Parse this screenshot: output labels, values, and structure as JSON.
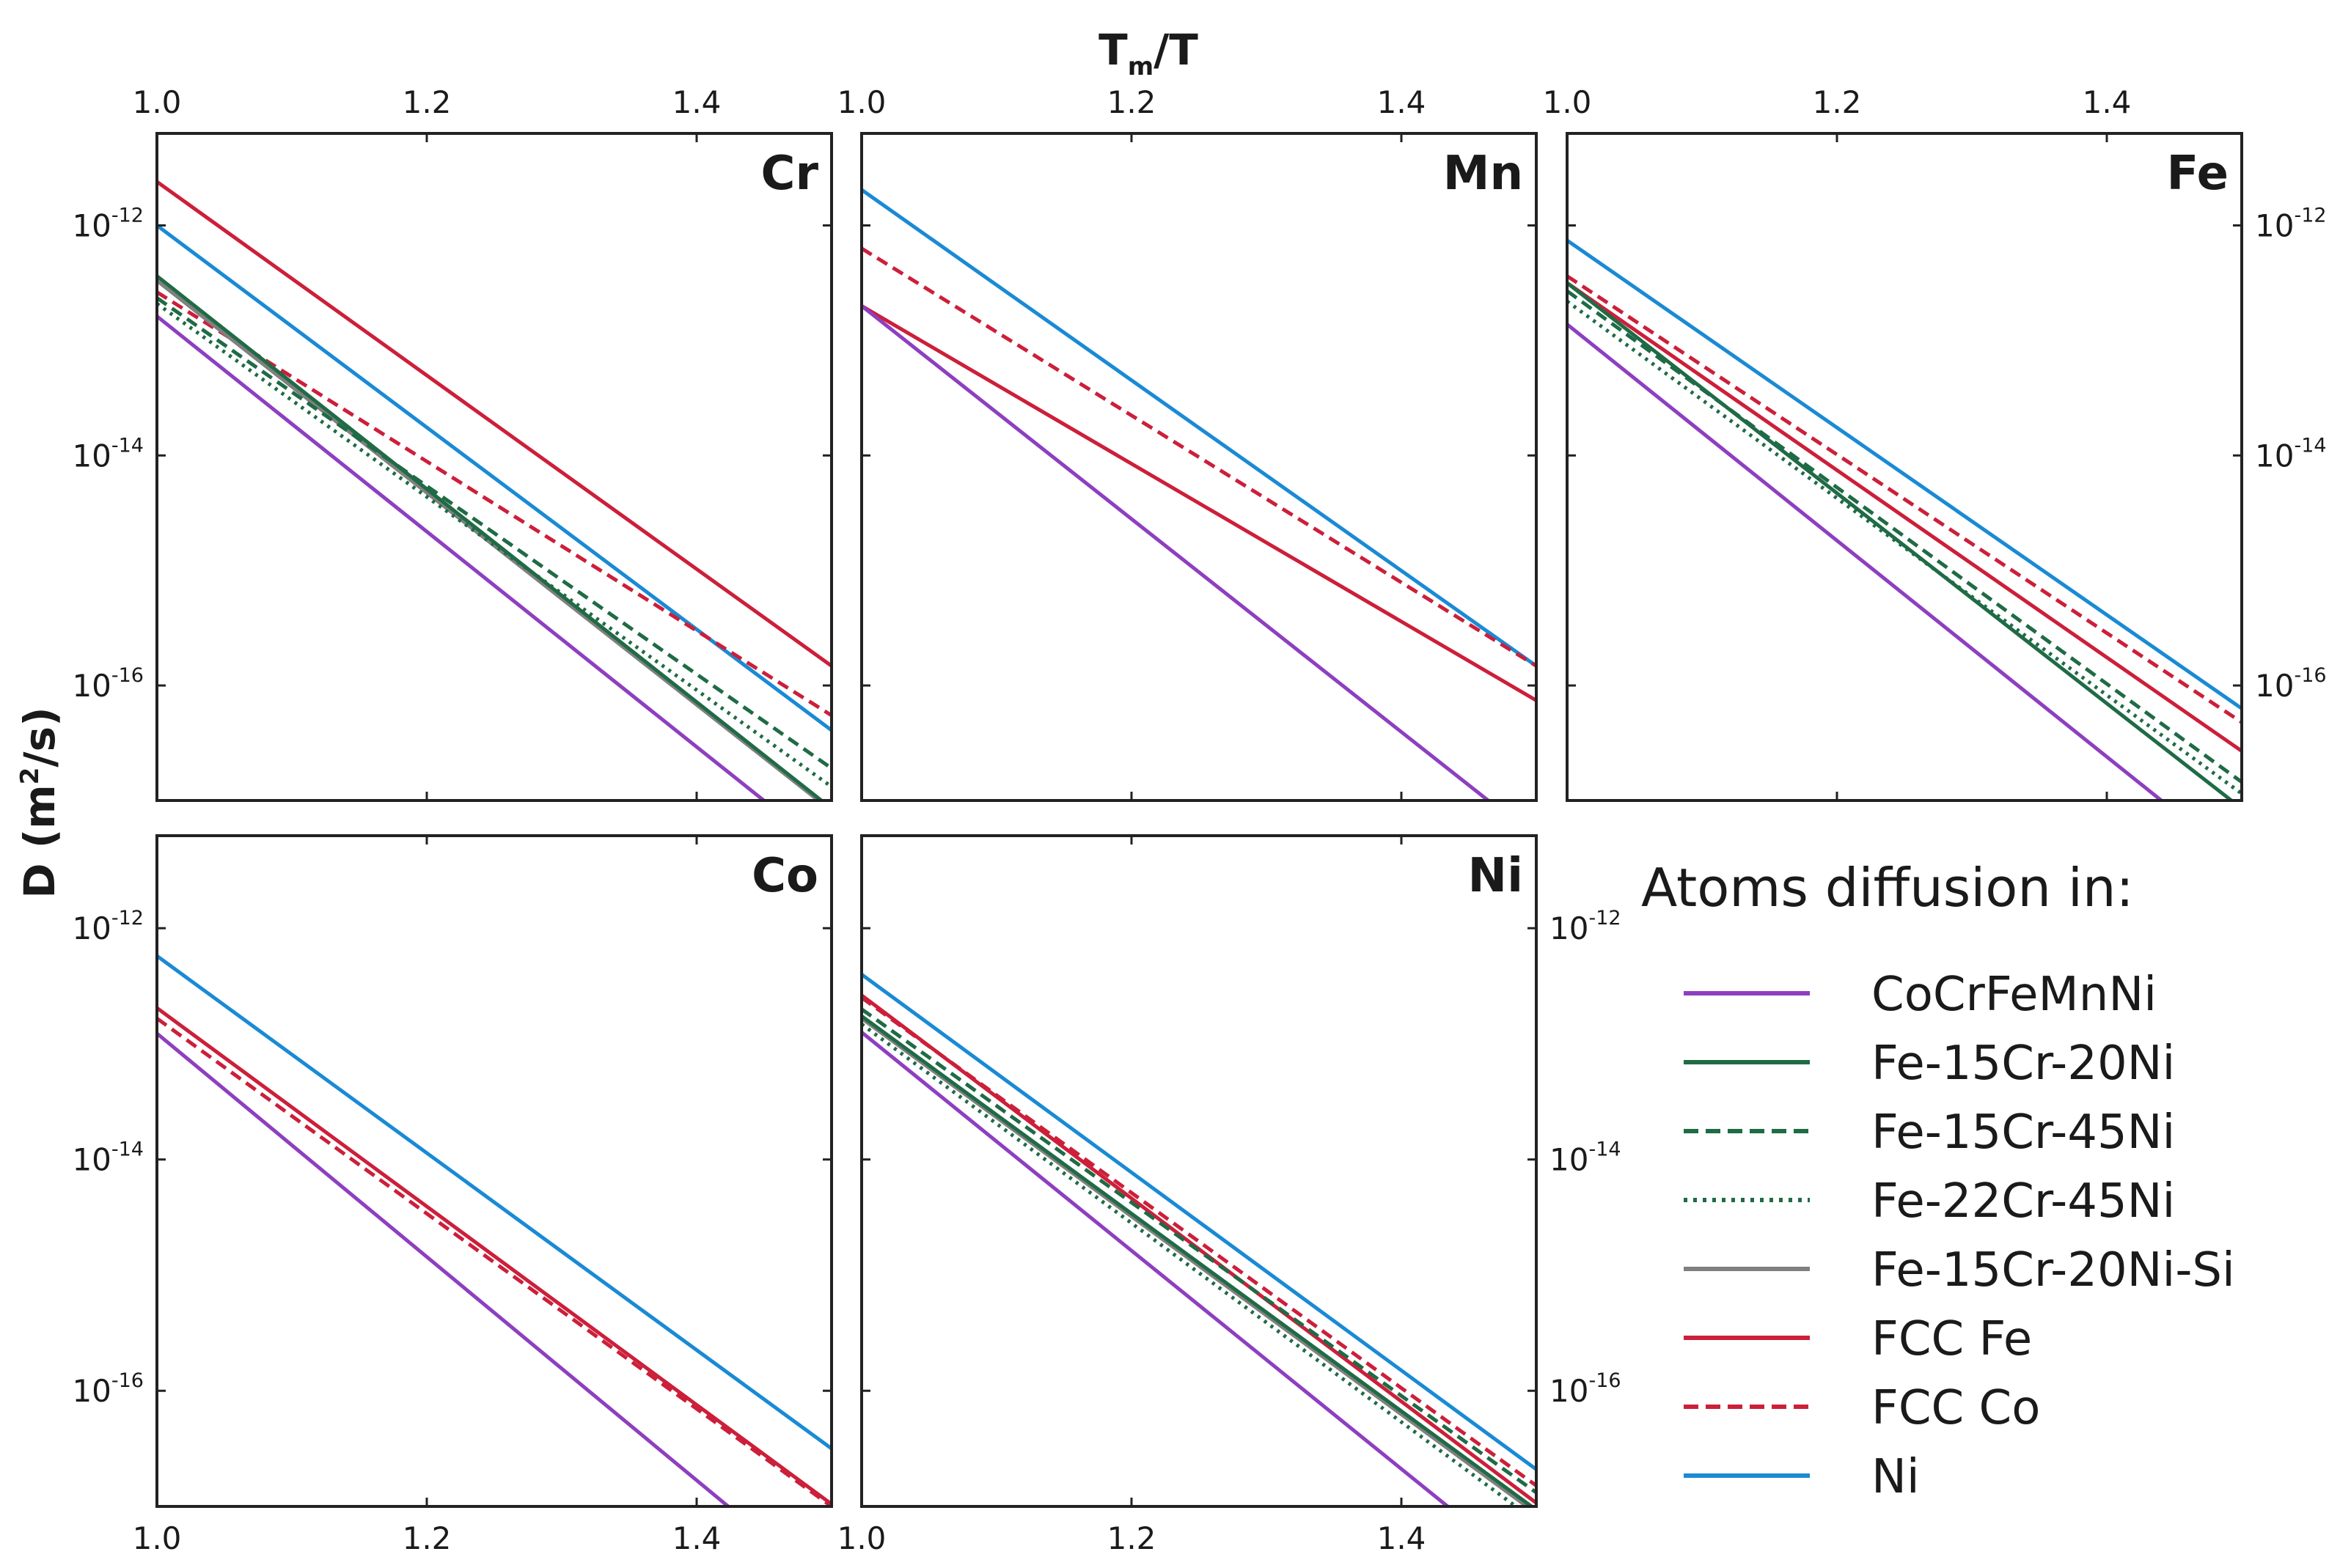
{
  "figure": {
    "x_title_main": "T",
    "x_title_sub": "m",
    "x_title_rest": "/T",
    "y_title_pre": "D (m",
    "y_title_sup": "2",
    "y_title_post": "/s)"
  },
  "legend": {
    "title": "Atoms diffusion in:"
  },
  "chart_data": {
    "type": "line",
    "xlabel": "Tm/T",
    "ylabel": "D (m²/s)",
    "xlim": [
      1.0,
      1.5
    ],
    "ylim_log10": [
      -17.0,
      -11.2
    ],
    "x_ticks": [
      "1.0",
      "1.2",
      "1.4"
    ],
    "y_ticks": [
      {
        "base": "10",
        "exp": "-12"
      },
      {
        "base": "10",
        "exp": "-14"
      },
      {
        "base": "10",
        "exp": "-16"
      }
    ],
    "series_styles": [
      {
        "name": "CoCrFeMnNi",
        "color": "#8e3fbf",
        "dash": "solid"
      },
      {
        "name": "Fe-15Cr-20Ni",
        "color": "#1f6b45",
        "dash": "solid"
      },
      {
        "name": "Fe-15Cr-45Ni",
        "color": "#1f6b45",
        "dash": "dashed"
      },
      {
        "name": "Fe-22Cr-45Ni",
        "color": "#1f6b45",
        "dash": "dotted"
      },
      {
        "name": "Fe-15Cr-20Ni-Si",
        "color": "#808080",
        "dash": "solid"
      },
      {
        "name": "FCC Fe",
        "color": "#cc1f3a",
        "dash": "solid"
      },
      {
        "name": "FCC Co",
        "color": "#cc1f3a",
        "dash": "dashed"
      },
      {
        "name": "Ni",
        "color": "#1a8ad4",
        "dash": "solid"
      }
    ],
    "panels": [
      {
        "title": "Cr",
        "series": [
          {
            "name": "FCC Fe",
            "log10D_at_1.0": -11.62,
            "log10D_at_1.5": -15.83
          },
          {
            "name": "Ni",
            "log10D_at_1.0": -12.0,
            "log10D_at_1.5": -16.39
          },
          {
            "name": "Fe-15Cr-20Ni",
            "log10D_at_1.0": -12.44,
            "log10D_at_1.5": -17.07
          },
          {
            "name": "Fe-15Cr-20Ni-Si",
            "log10D_at_1.0": -12.48,
            "log10D_at_1.5": -17.09
          },
          {
            "name": "FCC Co",
            "log10D_at_1.0": -12.58,
            "log10D_at_1.5": -16.26
          },
          {
            "name": "Fe-15Cr-45Ni",
            "log10D_at_1.0": -12.63,
            "log10D_at_1.5": -16.72
          },
          {
            "name": "Fe-22Cr-45Ni",
            "log10D_at_1.0": -12.68,
            "log10D_at_1.5": -16.88
          },
          {
            "name": "CoCrFeMnNi",
            "log10D_at_1.0": -12.79,
            "log10D_at_1.5": -17.47
          }
        ]
      },
      {
        "title": "Mn",
        "series": [
          {
            "name": "Ni",
            "log10D_at_1.0": -11.69,
            "log10D_at_1.5": -15.83
          },
          {
            "name": "FCC Co",
            "log10D_at_1.0": -12.2,
            "log10D_at_1.5": -15.83
          },
          {
            "name": "FCC Fe",
            "log10D_at_1.0": -12.7,
            "log10D_at_1.5": -16.13
          },
          {
            "name": "CoCrFeMnNi",
            "log10D_at_1.0": -12.7,
            "log10D_at_1.5": -17.33
          }
        ]
      },
      {
        "title": "Fe",
        "series": [
          {
            "name": "Ni",
            "log10D_at_1.0": -12.13,
            "log10D_at_1.5": -16.2
          },
          {
            "name": "FCC Co",
            "log10D_at_1.0": -12.44,
            "log10D_at_1.5": -16.32
          },
          {
            "name": "FCC Fe",
            "log10D_at_1.0": -12.5,
            "log10D_at_1.5": -16.57
          },
          {
            "name": "Fe-15Cr-20Ni",
            "log10D_at_1.0": -12.5,
            "log10D_at_1.5": -17.07
          },
          {
            "name": "Fe-15Cr-45Ni",
            "log10D_at_1.0": -12.57,
            "log10D_at_1.5": -16.84
          },
          {
            "name": "Fe-22Cr-45Ni",
            "log10D_at_1.0": -12.66,
            "log10D_at_1.5": -16.94
          },
          {
            "name": "CoCrFeMnNi",
            "log10D_at_1.0": -12.86,
            "log10D_at_1.5": -17.56
          }
        ]
      },
      {
        "title": "Co",
        "series": [
          {
            "name": "Ni",
            "log10D_at_1.0": -12.24,
            "log10D_at_1.5": -16.5
          },
          {
            "name": "FCC Fe",
            "log10D_at_1.0": -12.69,
            "log10D_at_1.5": -16.98
          },
          {
            "name": "FCC Co",
            "log10D_at_1.0": -12.78,
            "log10D_at_1.5": -17.0
          },
          {
            "name": "CoCrFeMnNi",
            "log10D_at_1.0": -12.91,
            "log10D_at_1.5": -17.74
          }
        ]
      },
      {
        "title": "Ni",
        "series": [
          {
            "name": "Ni",
            "log10D_at_1.0": -12.4,
            "log10D_at_1.5": -16.68
          },
          {
            "name": "FCC Co",
            "log10D_at_1.0": -12.6,
            "log10D_at_1.5": -16.82
          },
          {
            "name": "FCC Fe",
            "log10D_at_1.0": -12.58,
            "log10D_at_1.5": -16.97
          },
          {
            "name": "Fe-15Cr-45Ni",
            "log10D_at_1.0": -12.7,
            "log10D_at_1.5": -16.88
          },
          {
            "name": "Fe-15Cr-20Ni",
            "log10D_at_1.0": -12.76,
            "log10D_at_1.5": -17.03
          },
          {
            "name": "Fe-15Cr-20Ni-Si",
            "log10D_at_1.0": -12.78,
            "log10D_at_1.5": -17.06
          },
          {
            "name": "Fe-22Cr-45Ni",
            "log10D_at_1.0": -12.83,
            "log10D_at_1.5": -17.13
          },
          {
            "name": "CoCrFeMnNi",
            "log10D_at_1.0": -12.9,
            "log10D_at_1.5": -17.62
          }
        ]
      }
    ]
  }
}
